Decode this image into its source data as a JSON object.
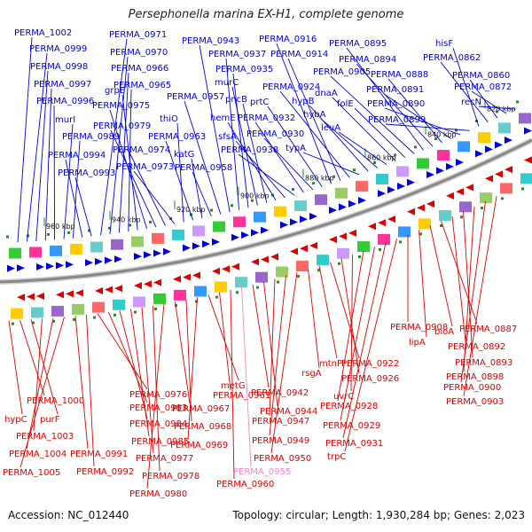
{
  "title": "Persephonella marina EX-H1, complete genome",
  "footer": {
    "accession": "Accession: NC_012440",
    "summary": "Topology: circular; Length: 1,930,284 bp; Genes: 2,023"
  },
  "colors": {
    "forward": "#0000dd",
    "reverse": "#dd0000",
    "rna": "#ee88cc",
    "backbone": "#888888",
    "tick": "#2a8a2a"
  },
  "ticks": [
    "960 kbp",
    "940 kbp",
    "920 kbp",
    "900 kbp",
    "880 kbp",
    "860 kbp",
    "840 kbp",
    "820 kbp"
  ],
  "top_labels": [
    "PERMA_1002",
    "PERMA_0999",
    "PERMA_0998",
    "PERMA_0997",
    "PERMA_0996",
    "murI",
    "PERMA_0989",
    "PERMA_0994",
    "PERMA_0993",
    "PERMA_0971",
    "PERMA_0970",
    "PERMA_0966",
    "PERMA_0965",
    "grpE",
    "PERMA_0975",
    "PERMA_0979",
    "PERMA_0974",
    "PERMA_0973",
    "thiO",
    "PERMA_0963",
    "katG",
    "PERMA_0958",
    "PERMA_0957",
    "PERMA_0943",
    "PERMA_0937",
    "PERMA_0935",
    "murC",
    "pncB",
    "hemE",
    "sfsA",
    "PERMA_0938",
    "PERMA_0932",
    "PERMA_0930",
    "prtC",
    "PERMA_0916",
    "PERMA_0914",
    "PERMA_0924",
    "typA",
    "hypB",
    "hybA",
    "leuA",
    "dnaA",
    "folE",
    "PERMA_0905",
    "PERMA_0895",
    "PERMA_0894",
    "PERMA_0888",
    "PERMA_0891",
    "PERMA_0890",
    "PERMA_0899",
    "hisF",
    "PERMA_0862",
    "PERMA_0860",
    "PERMA_0872",
    "recN"
  ],
  "bottom_labels": [
    "hypC",
    "PERMA_1000",
    "purF",
    "PERMA_1003",
    "PERMA_1004",
    "PERMA_1005",
    "PERMA_0991",
    "PERMA_0992",
    "PERMA_0976",
    "PERMA_0983",
    "PERMA_0984",
    "PERMA_0985",
    "PERMA_0977",
    "PERMA_0978",
    "PERMA_0980",
    "PERMA_0967",
    "PERMA_0968",
    "PERMA_0969",
    "metG",
    "PERMA_0961",
    "PERMA_0960",
    "PERMA_0955",
    "PERMA_0942",
    "PERMA_0944",
    "PERMA_0947",
    "PERMA_0949",
    "PERMA_0950",
    "rsgA",
    "mtnP",
    "PERMA_0922",
    "PERMA_0926",
    "uvrC",
    "PERMA_0928",
    "PERMA_0929",
    "PERMA_0931",
    "trpC",
    "PERMA_0908",
    "lipA",
    "bioA",
    "PERMA_0887",
    "PERMA_0892",
    "PERMA_0893",
    "PERMA_0898",
    "PERMA_0900",
    "PERMA_0903"
  ],
  "rna_label": "PERMA_0955"
}
